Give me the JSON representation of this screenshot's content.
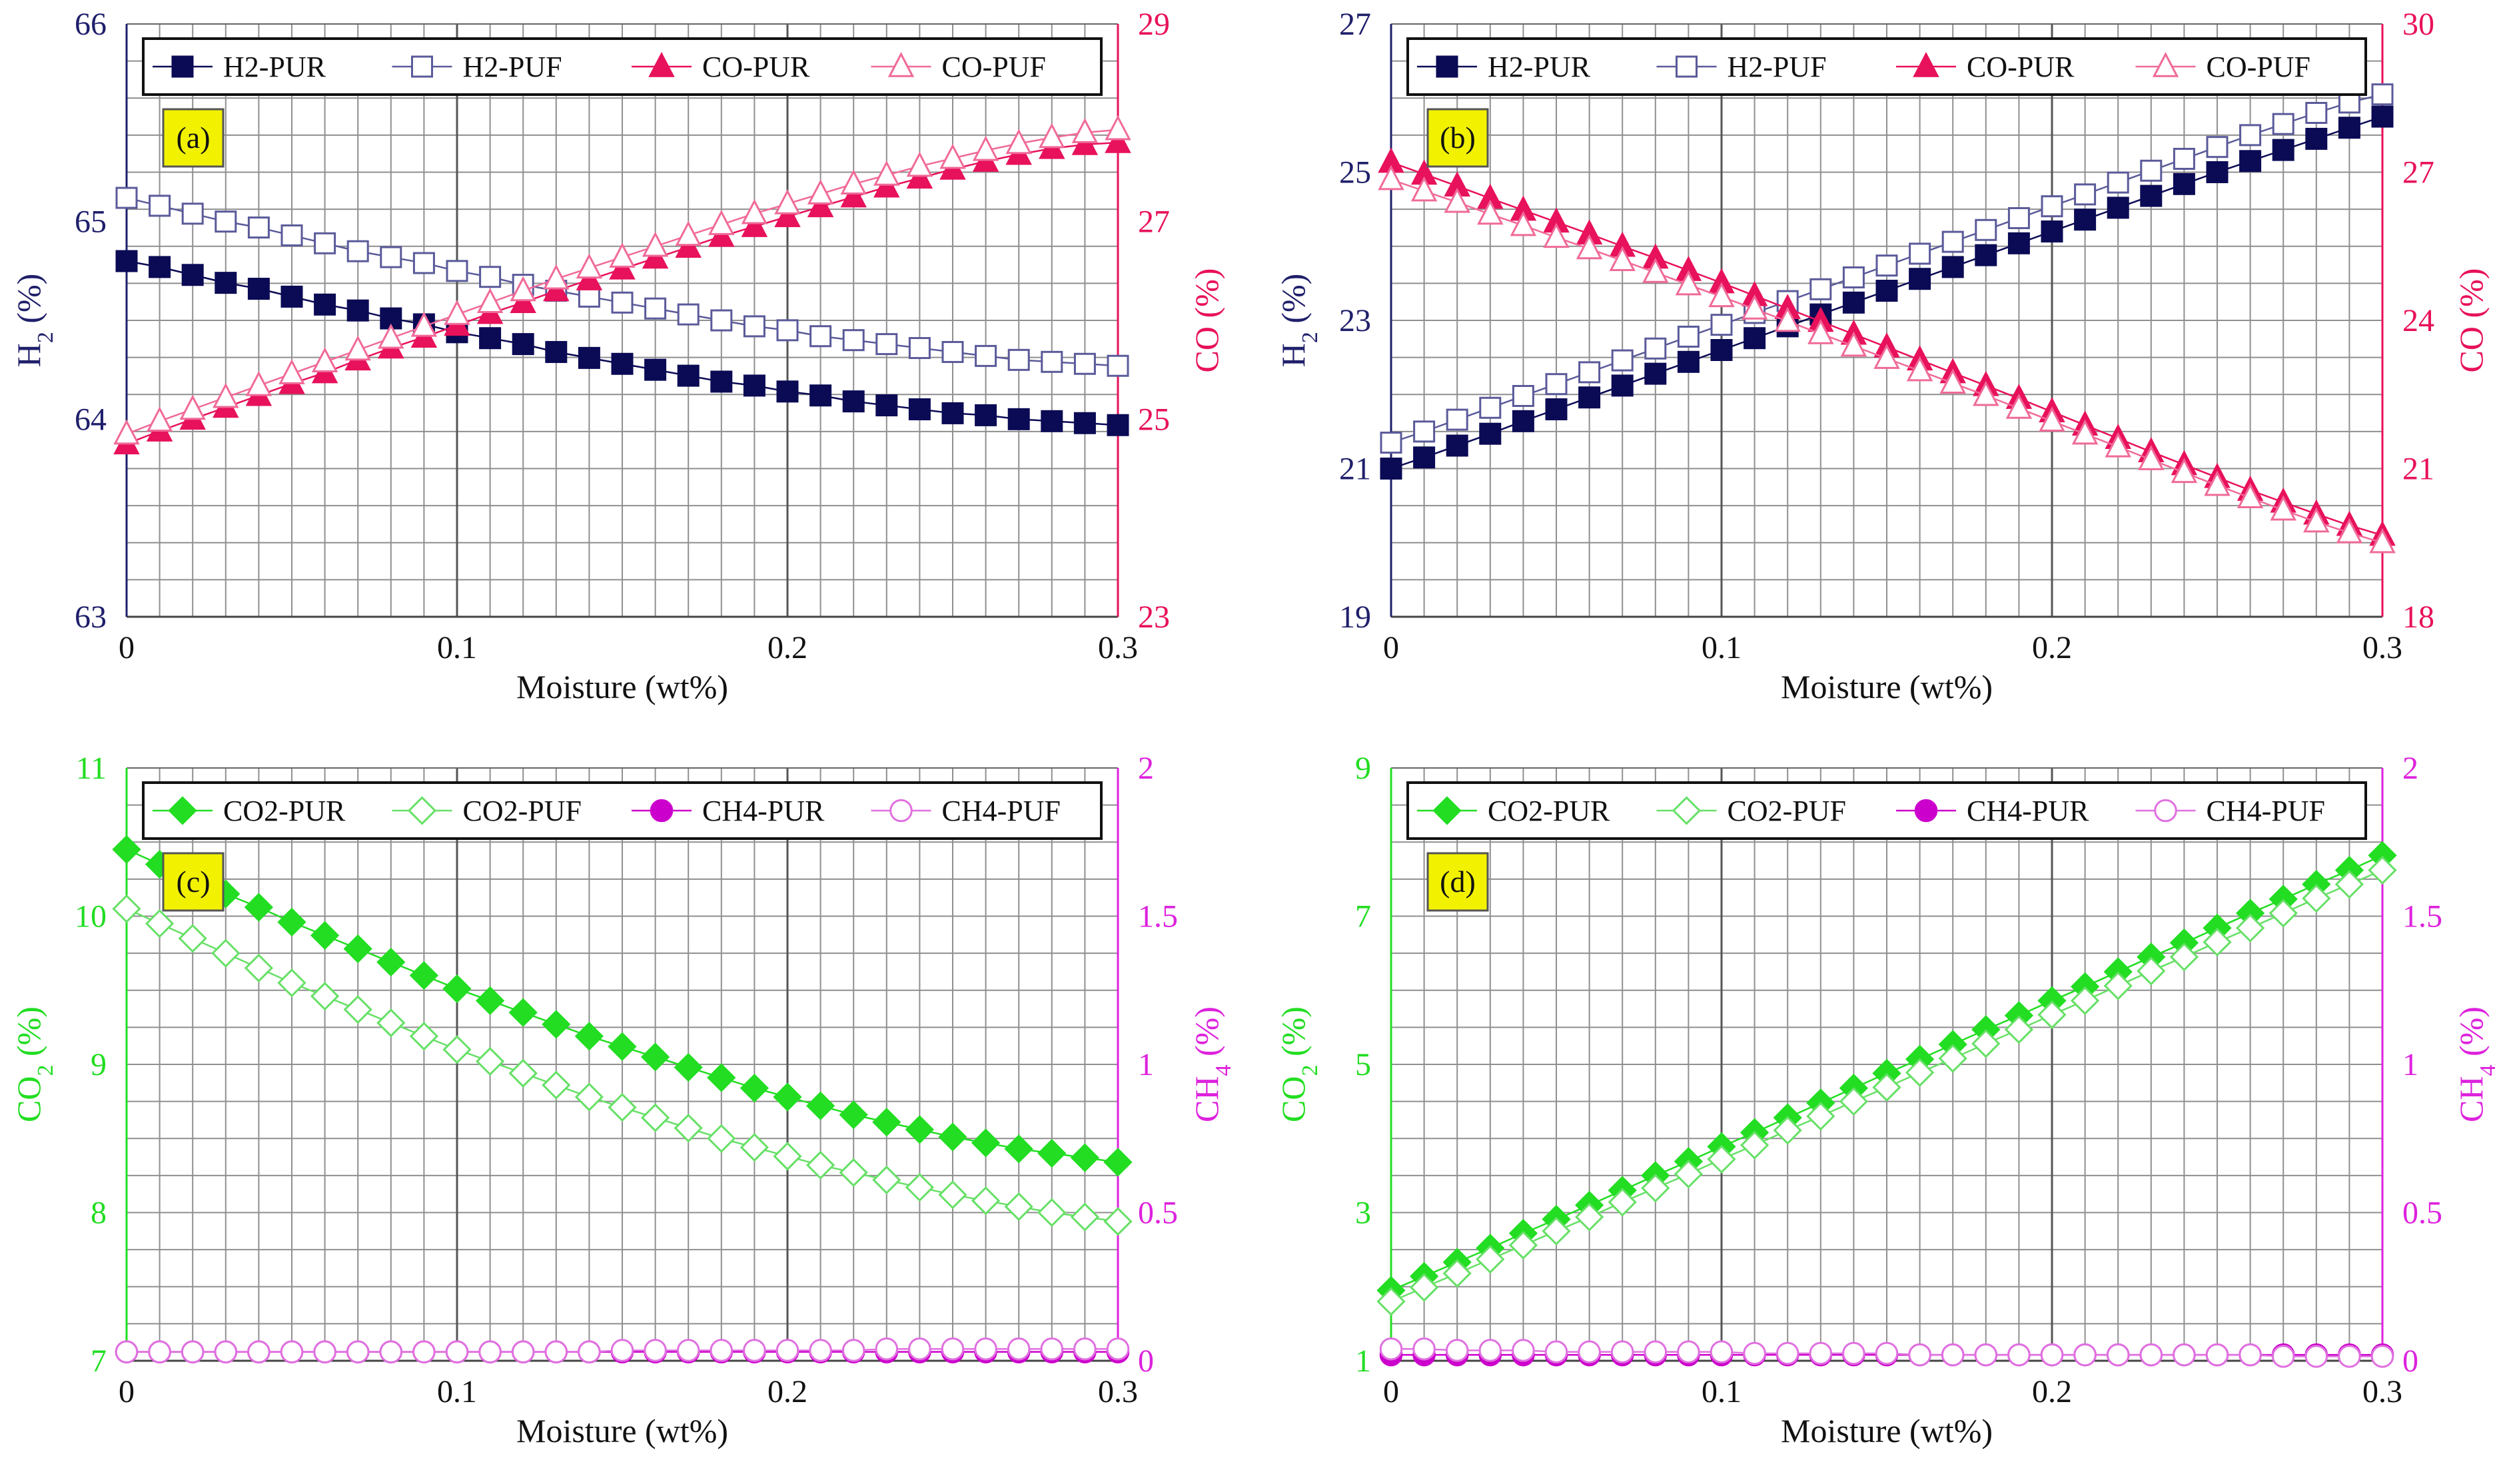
{
  "colors": {
    "h2_axis": "#1f1f6b",
    "co_axis": "#e8115b",
    "co2_axis": "#22dd22",
    "ch4_axis": "#dd22dd",
    "navy_marker": "#0a0a55",
    "hollow_blue": "#5a5a9a",
    "pink": "#e8115b",
    "pink_light": "#f06a99",
    "green": "#22dd22",
    "green_light": "#66e066",
    "magenta": "#cc00cc",
    "magenta_light": "#e070e0",
    "tag_bg": "#f2f200",
    "grid": "#8f8f8f"
  },
  "chart_data": [
    {
      "id": "a",
      "type": "line",
      "tag": "(a)",
      "xlabel": "Moisture (wt%)",
      "xlim": [
        0,
        0.3
      ],
      "xticks": [
        "0",
        "0.1",
        "0.2",
        "0.3"
      ],
      "left": {
        "label_main": "H",
        "label_sub": "2",
        "label_tail": " (%)",
        "ylim": [
          63,
          66
        ],
        "ticks": [
          "63",
          "64",
          "65",
          "66"
        ],
        "color_key": "h2_axis"
      },
      "right": {
        "label_main": "CO (%)",
        "label_sub": "",
        "label_tail": "",
        "ylim": [
          23,
          29
        ],
        "ticks": [
          "23",
          "25",
          "27",
          "29"
        ],
        "color_key": "co_axis"
      },
      "x": [
        0,
        0.01,
        0.02,
        0.03,
        0.04,
        0.05,
        0.06,
        0.07,
        0.08,
        0.09,
        0.1,
        0.11,
        0.12,
        0.13,
        0.14,
        0.15,
        0.16,
        0.17,
        0.18,
        0.19,
        0.2,
        0.21,
        0.22,
        0.23,
        0.24,
        0.25,
        0.26,
        0.27,
        0.28,
        0.29,
        0.3
      ],
      "series": [
        {
          "name": "H2-PUR",
          "axis": "left",
          "marker": "square",
          "filled": true,
          "color_key": "navy_marker",
          "values": [
            64.8,
            64.77,
            64.73,
            64.69,
            64.66,
            64.62,
            64.58,
            64.55,
            64.51,
            64.48,
            64.44,
            64.41,
            64.38,
            64.34,
            64.31,
            64.28,
            64.25,
            64.22,
            64.19,
            64.17,
            64.14,
            64.12,
            64.09,
            64.07,
            64.05,
            64.03,
            64.02,
            64.0,
            63.99,
            63.98,
            63.97
          ]
        },
        {
          "name": "H2-PUF",
          "axis": "left",
          "marker": "square",
          "filled": false,
          "color_key": "hollow_blue",
          "values": [
            65.12,
            65.08,
            65.04,
            65.0,
            64.97,
            64.93,
            64.89,
            64.85,
            64.82,
            64.79,
            64.75,
            64.72,
            64.68,
            64.65,
            64.62,
            64.59,
            64.56,
            64.53,
            64.5,
            64.47,
            64.45,
            64.42,
            64.4,
            64.38,
            64.36,
            64.34,
            64.32,
            64.3,
            64.29,
            64.28,
            64.27
          ]
        },
        {
          "name": "CO-PUR",
          "axis": "right",
          "marker": "triangle",
          "filled": true,
          "color_key": "pink",
          "values": [
            24.75,
            24.88,
            25.0,
            25.12,
            25.24,
            25.36,
            25.47,
            25.6,
            25.72,
            25.83,
            25.95,
            26.07,
            26.18,
            26.3,
            26.41,
            26.52,
            26.63,
            26.74,
            26.85,
            26.95,
            27.05,
            27.15,
            27.25,
            27.35,
            27.44,
            27.53,
            27.61,
            27.68,
            27.74,
            27.78,
            27.8
          ]
        },
        {
          "name": "CO-PUF",
          "axis": "right",
          "marker": "triangle",
          "filled": false,
          "color_key": "pink_light",
          "values": [
            24.85,
            24.98,
            25.1,
            25.22,
            25.34,
            25.46,
            25.58,
            25.7,
            25.82,
            25.94,
            26.06,
            26.18,
            26.3,
            26.42,
            26.53,
            26.64,
            26.75,
            26.86,
            26.97,
            27.08,
            27.18,
            27.28,
            27.38,
            27.47,
            27.56,
            27.64,
            27.72,
            27.79,
            27.85,
            27.9,
            27.93
          ]
        }
      ]
    },
    {
      "id": "b",
      "type": "line",
      "tag": "(b)",
      "xlabel": "Moisture (wt%)",
      "xlim": [
        0,
        0.3
      ],
      "xticks": [
        "0",
        "0.1",
        "0.2",
        "0.3"
      ],
      "left": {
        "label_main": "H",
        "label_sub": "2",
        "label_tail": " (%)",
        "ylim": [
          19,
          27
        ],
        "ticks": [
          "19",
          "21",
          "23",
          "25",
          "27"
        ],
        "color_key": "h2_axis"
      },
      "right": {
        "label_main": "CO (%)",
        "label_sub": "",
        "label_tail": "",
        "ylim": [
          18,
          30
        ],
        "ticks": [
          "18",
          "21",
          "24",
          "27",
          "30"
        ],
        "color_key": "co_axis"
      },
      "x": [
        0,
        0.01,
        0.02,
        0.03,
        0.04,
        0.05,
        0.06,
        0.07,
        0.08,
        0.09,
        0.1,
        0.11,
        0.12,
        0.13,
        0.14,
        0.15,
        0.16,
        0.17,
        0.18,
        0.19,
        0.2,
        0.21,
        0.22,
        0.23,
        0.24,
        0.25,
        0.26,
        0.27,
        0.28,
        0.29,
        0.3
      ],
      "series": [
        {
          "name": "H2-PUR",
          "axis": "left",
          "marker": "square",
          "filled": true,
          "color_key": "navy_marker",
          "values": [
            21.0,
            21.15,
            21.31,
            21.47,
            21.64,
            21.8,
            21.96,
            22.12,
            22.28,
            22.44,
            22.6,
            22.76,
            22.92,
            23.08,
            23.24,
            23.4,
            23.56,
            23.72,
            23.88,
            24.04,
            24.2,
            24.36,
            24.52,
            24.68,
            24.84,
            25.0,
            25.15,
            25.3,
            25.45,
            25.6,
            25.75
          ]
        },
        {
          "name": "H2-PUF",
          "axis": "left",
          "marker": "square",
          "filled": false,
          "color_key": "hollow_blue",
          "values": [
            21.35,
            21.5,
            21.66,
            21.82,
            21.98,
            22.14,
            22.3,
            22.46,
            22.62,
            22.78,
            22.94,
            23.1,
            23.26,
            23.42,
            23.58,
            23.74,
            23.9,
            24.06,
            24.22,
            24.38,
            24.54,
            24.7,
            24.86,
            25.02,
            25.18,
            25.34,
            25.5,
            25.65,
            25.8,
            25.94,
            26.05
          ]
        },
        {
          "name": "CO-PUR",
          "axis": "right",
          "marker": "triangle",
          "filled": true,
          "color_key": "pink",
          "values": [
            27.2,
            26.96,
            26.72,
            26.47,
            26.23,
            25.99,
            25.75,
            25.5,
            25.26,
            25.01,
            24.76,
            24.5,
            24.24,
            23.98,
            23.72,
            23.46,
            23.2,
            22.94,
            22.68,
            22.42,
            22.15,
            21.88,
            21.61,
            21.34,
            21.08,
            20.82,
            20.56,
            20.32,
            20.08,
            19.85,
            19.65
          ]
        },
        {
          "name": "CO-PUF",
          "axis": "right",
          "marker": "triangle",
          "filled": false,
          "color_key": "pink_light",
          "values": [
            26.85,
            26.62,
            26.39,
            26.15,
            25.92,
            25.68,
            25.45,
            25.21,
            24.97,
            24.72,
            24.48,
            24.23,
            23.98,
            23.73,
            23.48,
            23.23,
            22.98,
            22.73,
            22.48,
            22.22,
            21.96,
            21.7,
            21.44,
            21.18,
            20.92,
            20.66,
            20.41,
            20.16,
            19.92,
            19.7,
            19.5
          ]
        }
      ]
    },
    {
      "id": "c",
      "type": "line",
      "tag": "(c)",
      "xlabel": "Moisture (wt%)",
      "xlim": [
        0,
        0.3
      ],
      "xticks": [
        "0",
        "0.1",
        "0.2",
        "0.3"
      ],
      "left": {
        "label_main": "CO",
        "label_sub": "2",
        "label_tail": " (%)",
        "ylim": [
          7,
          11
        ],
        "ticks": [
          "7",
          "8",
          "9",
          "10",
          "11"
        ],
        "color_key": "co2_axis"
      },
      "right": {
        "label_main": "CH",
        "label_sub": "4",
        "label_tail": " (%)",
        "ylim": [
          0,
          2
        ],
        "ticks": [
          "0",
          "0.5",
          "1",
          "1.5",
          "2"
        ],
        "color_key": "ch4_axis"
      },
      "x": [
        0,
        0.01,
        0.02,
        0.03,
        0.04,
        0.05,
        0.06,
        0.07,
        0.08,
        0.09,
        0.1,
        0.11,
        0.12,
        0.13,
        0.14,
        0.15,
        0.16,
        0.17,
        0.18,
        0.19,
        0.2,
        0.21,
        0.22,
        0.23,
        0.24,
        0.25,
        0.26,
        0.27,
        0.28,
        0.29,
        0.3
      ],
      "series": [
        {
          "name": "CO2-PUR",
          "axis": "left",
          "marker": "diamond",
          "filled": true,
          "color_key": "green",
          "values": [
            10.45,
            10.35,
            10.25,
            10.15,
            10.06,
            9.96,
            9.87,
            9.78,
            9.69,
            9.6,
            9.51,
            9.43,
            9.35,
            9.27,
            9.19,
            9.12,
            9.05,
            8.98,
            8.91,
            8.84,
            8.78,
            8.72,
            8.66,
            8.61,
            8.56,
            8.51,
            8.47,
            8.43,
            8.4,
            8.37,
            8.34
          ]
        },
        {
          "name": "CO2-PUF",
          "axis": "left",
          "marker": "diamond",
          "filled": false,
          "color_key": "green_light",
          "values": [
            10.05,
            9.95,
            9.85,
            9.75,
            9.65,
            9.55,
            9.46,
            9.37,
            9.28,
            9.19,
            9.1,
            9.02,
            8.94,
            8.86,
            8.78,
            8.71,
            8.64,
            8.57,
            8.5,
            8.44,
            8.38,
            8.32,
            8.27,
            8.22,
            8.17,
            8.12,
            8.08,
            8.04,
            8.0,
            7.97,
            7.94
          ]
        },
        {
          "name": "CH4-PUR",
          "axis": "right",
          "marker": "circle",
          "filled": true,
          "color_key": "magenta",
          "values": [
            0.03,
            0.03,
            0.03,
            0.03,
            0.03,
            0.03,
            0.03,
            0.03,
            0.03,
            0.03,
            0.03,
            0.03,
            0.03,
            0.03,
            0.03,
            0.03,
            0.03,
            0.03,
            0.03,
            0.03,
            0.03,
            0.03,
            0.03,
            0.03,
            0.03,
            0.03,
            0.03,
            0.03,
            0.03,
            0.03,
            0.03
          ]
        },
        {
          "name": "CH4-PUF",
          "axis": "right",
          "marker": "circle",
          "filled": false,
          "color_key": "magenta_light",
          "values": [
            0.03,
            0.03,
            0.03,
            0.03,
            0.03,
            0.03,
            0.03,
            0.03,
            0.03,
            0.03,
            0.03,
            0.03,
            0.03,
            0.03,
            0.03,
            0.035,
            0.035,
            0.035,
            0.035,
            0.035,
            0.035,
            0.035,
            0.035,
            0.04,
            0.04,
            0.04,
            0.04,
            0.04,
            0.04,
            0.04,
            0.04
          ]
        }
      ]
    },
    {
      "id": "d",
      "type": "line",
      "tag": "(d)",
      "xlabel": "Moisture (wt%)",
      "xlim": [
        0,
        0.3
      ],
      "xticks": [
        "0",
        "0.1",
        "0.2",
        "0.3"
      ],
      "left": {
        "label_main": "CO",
        "label_sub": "2",
        "label_tail": " (%)",
        "ylim": [
          1,
          9
        ],
        "ticks": [
          "1",
          "3",
          "5",
          "7",
          "9"
        ],
        "color_key": "co2_axis"
      },
      "right": {
        "label_main": "CH",
        "label_sub": "4",
        "label_tail": " (%)",
        "ylim": [
          0,
          2
        ],
        "ticks": [
          "0",
          "0.5",
          "1",
          "1.5",
          "2"
        ],
        "color_key": "ch4_axis"
      },
      "x": [
        0,
        0.01,
        0.02,
        0.03,
        0.04,
        0.05,
        0.06,
        0.07,
        0.08,
        0.09,
        0.1,
        0.11,
        0.12,
        0.13,
        0.14,
        0.15,
        0.16,
        0.17,
        0.18,
        0.19,
        0.2,
        0.21,
        0.22,
        0.23,
        0.24,
        0.25,
        0.26,
        0.27,
        0.28,
        0.29,
        0.3
      ],
      "series": [
        {
          "name": "CO2-PUR",
          "axis": "left",
          "marker": "diamond",
          "filled": true,
          "color_key": "green",
          "values": [
            1.95,
            2.14,
            2.33,
            2.52,
            2.72,
            2.91,
            3.1,
            3.3,
            3.5,
            3.69,
            3.89,
            4.08,
            4.28,
            4.48,
            4.68,
            4.88,
            5.07,
            5.27,
            5.47,
            5.66,
            5.86,
            6.05,
            6.25,
            6.45,
            6.64,
            6.84,
            7.04,
            7.23,
            7.43,
            7.62,
            7.82
          ]
        },
        {
          "name": "CO2-PUF",
          "axis": "left",
          "marker": "diamond",
          "filled": false,
          "color_key": "green_light",
          "values": [
            1.8,
            1.99,
            2.18,
            2.37,
            2.56,
            2.75,
            2.94,
            3.14,
            3.33,
            3.52,
            3.72,
            3.91,
            4.11,
            4.3,
            4.5,
            4.69,
            4.89,
            5.08,
            5.28,
            5.47,
            5.67,
            5.86,
            6.06,
            6.26,
            6.45,
            6.65,
            6.84,
            7.04,
            7.24,
            7.43,
            7.62
          ]
        },
        {
          "name": "CH4-PUR",
          "axis": "right",
          "marker": "circle",
          "filled": true,
          "color_key": "magenta",
          "values": [
            0.02,
            0.02,
            0.02,
            0.02,
            0.02,
            0.02,
            0.02,
            0.02,
            0.02,
            0.02,
            0.02,
            0.02,
            0.02,
            0.02,
            0.02,
            0.02,
            0.02,
            0.02,
            0.02,
            0.02,
            0.02,
            0.02,
            0.02,
            0.02,
            0.02,
            0.02,
            0.02,
            0.02,
            0.02,
            0.02,
            0.02
          ]
        },
        {
          "name": "CH4-PUF",
          "axis": "right",
          "marker": "circle",
          "filled": false,
          "color_key": "magenta_light",
          "values": [
            0.04,
            0.04,
            0.035,
            0.035,
            0.035,
            0.03,
            0.03,
            0.03,
            0.03,
            0.03,
            0.03,
            0.025,
            0.025,
            0.025,
            0.025,
            0.025,
            0.02,
            0.02,
            0.02,
            0.02,
            0.02,
            0.02,
            0.02,
            0.02,
            0.02,
            0.02,
            0.02,
            0.015,
            0.015,
            0.015,
            0.015
          ]
        }
      ]
    }
  ]
}
